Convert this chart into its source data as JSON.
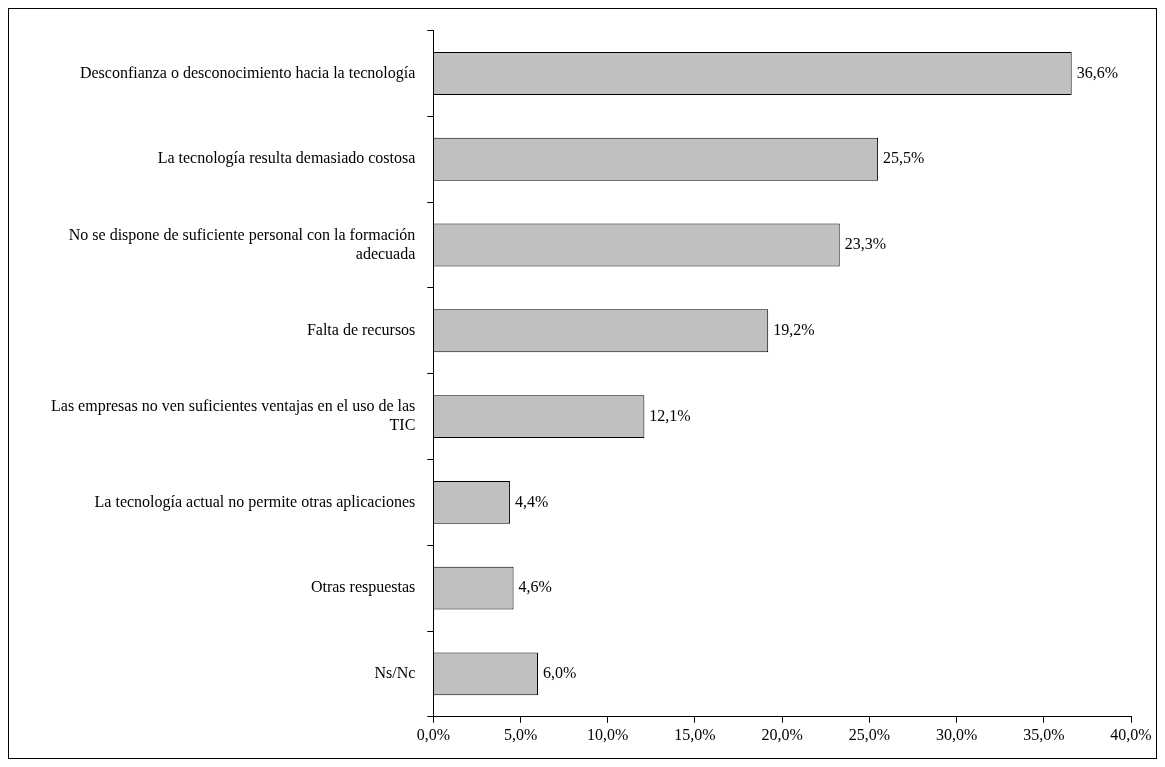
{
  "chart_data": {
    "type": "bar",
    "orientation": "horizontal",
    "categories": [
      "Desconfianza o desconocimiento hacia la tecnología",
      "La tecnología resulta demasiado costosa",
      "No se dispone de suficiente personal con la formación adecuada",
      "Falta de recursos",
      "Las empresas no ven suficientes ventajas en el uso de las TIC",
      "La tecnología actual no permite otras aplicaciones",
      "Otras respuestas",
      "Ns/Nc"
    ],
    "values": [
      36.6,
      25.5,
      23.3,
      19.2,
      12.1,
      4.4,
      4.6,
      6.0
    ],
    "value_labels": [
      "36,6%",
      "25,5%",
      "23,3%",
      "19,2%",
      "12,1%",
      "4,4%",
      "4,6%",
      "6,0%"
    ],
    "color": "#c0c0c0",
    "xlim": [
      0,
      40
    ],
    "xticks": [
      {
        "value": 0,
        "label": "0,0%"
      },
      {
        "value": 5,
        "label": "5,0%"
      },
      {
        "value": 10,
        "label": "10,0%"
      },
      {
        "value": 15,
        "label": "15,0%"
      },
      {
        "value": 20,
        "label": "20,0%"
      },
      {
        "value": 25,
        "label": "25,0%"
      },
      {
        "value": 30,
        "label": "30,0%"
      },
      {
        "value": 35,
        "label": "35,0%"
      },
      {
        "value": 40,
        "label": "40,0%"
      }
    ],
    "grid": false,
    "legend": false
  }
}
